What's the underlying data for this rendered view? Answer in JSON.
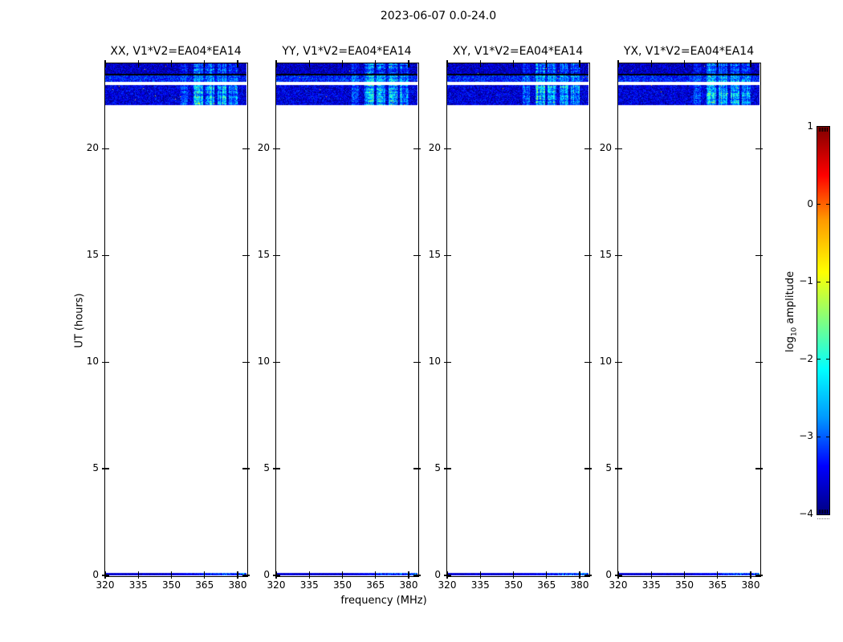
{
  "figure": {
    "title": "2023-06-07 0.0-24.0",
    "background": "#ffffff"
  },
  "chart_data": {
    "type": "heatmap",
    "title": "2023-06-07 0.0-24.0",
    "xlabel": "frequency (MHz)",
    "ylabel": "UT (hours)",
    "x_range_mhz": [
      320,
      384
    ],
    "y_range_hours": [
      0,
      24
    ],
    "x_tick_values": [
      320,
      335,
      350,
      365,
      380
    ],
    "x_tick_labels": [
      "320",
      "335",
      "350",
      "365",
      "380"
    ],
    "y_tick_values": [
      0,
      5,
      10,
      15,
      20
    ],
    "y_tick_labels": [
      "0",
      "5",
      "10",
      "15",
      "20"
    ],
    "panels": [
      {
        "pol": "XX",
        "title": "XX, V1*V2=EA04*EA14",
        "seed": 11
      },
      {
        "pol": "YY",
        "title": "YY, V1*V2=EA04*EA14",
        "seed": 22
      },
      {
        "pol": "XY",
        "title": "XY, V1*V2=EA04*EA14",
        "seed": 33
      },
      {
        "pol": "YX",
        "title": "YX, V1*V2=EA04*EA14",
        "seed": 44
      }
    ],
    "features": {
      "description": "blue noise band UT 22.0-24.0 with bright RFI stripes 354-380 MHz, white data gap near UT 23.0, black row near UT 23.45, thin noise strip at UT 0",
      "top_band": {
        "sections": [
          {
            "t_start": 23.5,
            "t_end": 24.0,
            "base_level": -3.7,
            "noise": 0.5,
            "stripe_boost": 1.35
          },
          {
            "t_start": 23.42,
            "t_end": 23.5,
            "fill": "#000000"
          },
          {
            "t_start": 23.12,
            "t_end": 23.42,
            "base_level": -3.25,
            "noise": 0.55,
            "stripe_boost": 1.15
          },
          {
            "t_start": 22.98,
            "t_end": 23.12,
            "fill": "#ffffff"
          },
          {
            "t_start": 22.03,
            "t_end": 22.98,
            "base_level": -3.55,
            "noise": 0.5,
            "stripe_boost": 1.75
          }
        ],
        "stripes_mhz": [
          [
            354,
            357,
            0.45
          ],
          [
            360,
            364,
            1.0
          ],
          [
            365.5,
            369,
            0.9
          ],
          [
            371,
            374.5,
            0.85
          ],
          [
            376,
            379.5,
            0.75
          ]
        ]
      },
      "bottom_strip": {
        "t_start": 0,
        "t_end": 0.12,
        "base_level": -3.8,
        "noise": 0.4,
        "boost_from_mhz": 350,
        "max_boost": 1.5
      }
    },
    "colorbar": {
      "label_prefix": "log",
      "label_sub": "10",
      "label_suffix": " amplitude",
      "colormap": "jet",
      "range": [
        -4,
        1
      ],
      "tick_values": [
        1,
        0,
        -1,
        -2,
        -3,
        -4
      ],
      "tick_labels": [
        "1",
        "0",
        "−1",
        "−2",
        "−3",
        "−4"
      ]
    }
  },
  "layout_colors": {
    "axes": "#000000",
    "background": "#ffffff"
  }
}
